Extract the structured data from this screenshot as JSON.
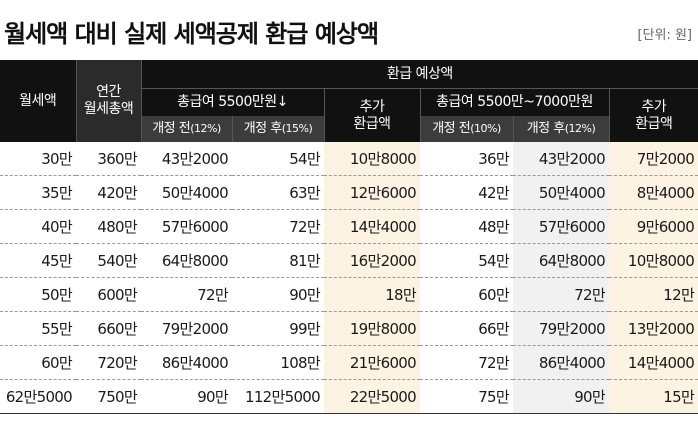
{
  "title": "월세액 대비 실제 세액공제 환급 예상액",
  "unit": "[단위: 원]",
  "header": {
    "rent": "월세액",
    "annual": "연간\n월세총액",
    "refund_group": "환급 예상액",
    "group1": "총급여 5500만원↓",
    "group2": "총급여 5500만~7000만원",
    "extra": "추가\n환급액",
    "before1": "개정 전",
    "before1_rate": "(12%)",
    "after1": "개정 후",
    "after1_rate": "(15%)",
    "before2": "개정 전",
    "before2_rate": "(10%)",
    "after2": "개정 후",
    "after2_rate": "(12%)"
  },
  "rows": [
    [
      "30만",
      "360만",
      "43만2000",
      "54만",
      "10만8000",
      "36만",
      "43만2000",
      "7만2000"
    ],
    [
      "35만",
      "420만",
      "50만4000",
      "63만",
      "12만6000",
      "42만",
      "50만4000",
      "8만4000"
    ],
    [
      "40만",
      "480만",
      "57만6000",
      "72만",
      "14만4000",
      "48만",
      "57만6000",
      "9만6000"
    ],
    [
      "45만",
      "540만",
      "64만8000",
      "81만",
      "16만2000",
      "54만",
      "64만8000",
      "10만8000"
    ],
    [
      "50만",
      "600만",
      "72만",
      "90만",
      "18만",
      "60만",
      "72만",
      "12만"
    ],
    [
      "55만",
      "660만",
      "79만2000",
      "99만",
      "19만8000",
      "66만",
      "79만2000",
      "13만2000"
    ],
    [
      "60만",
      "720만",
      "86만4000",
      "108만",
      "21만6000",
      "72만",
      "86만4000",
      "14만4000"
    ],
    [
      "62만5000",
      "750만",
      "90만",
      "112만5000",
      "22만5000",
      "75만",
      "90만",
      "15만"
    ]
  ],
  "colors": {
    "header_bg": "#111111",
    "subheader_bg": "#3c3c3c",
    "highlight_bg": "#fdf3e3",
    "mid_bg": "#f1f1f1"
  }
}
